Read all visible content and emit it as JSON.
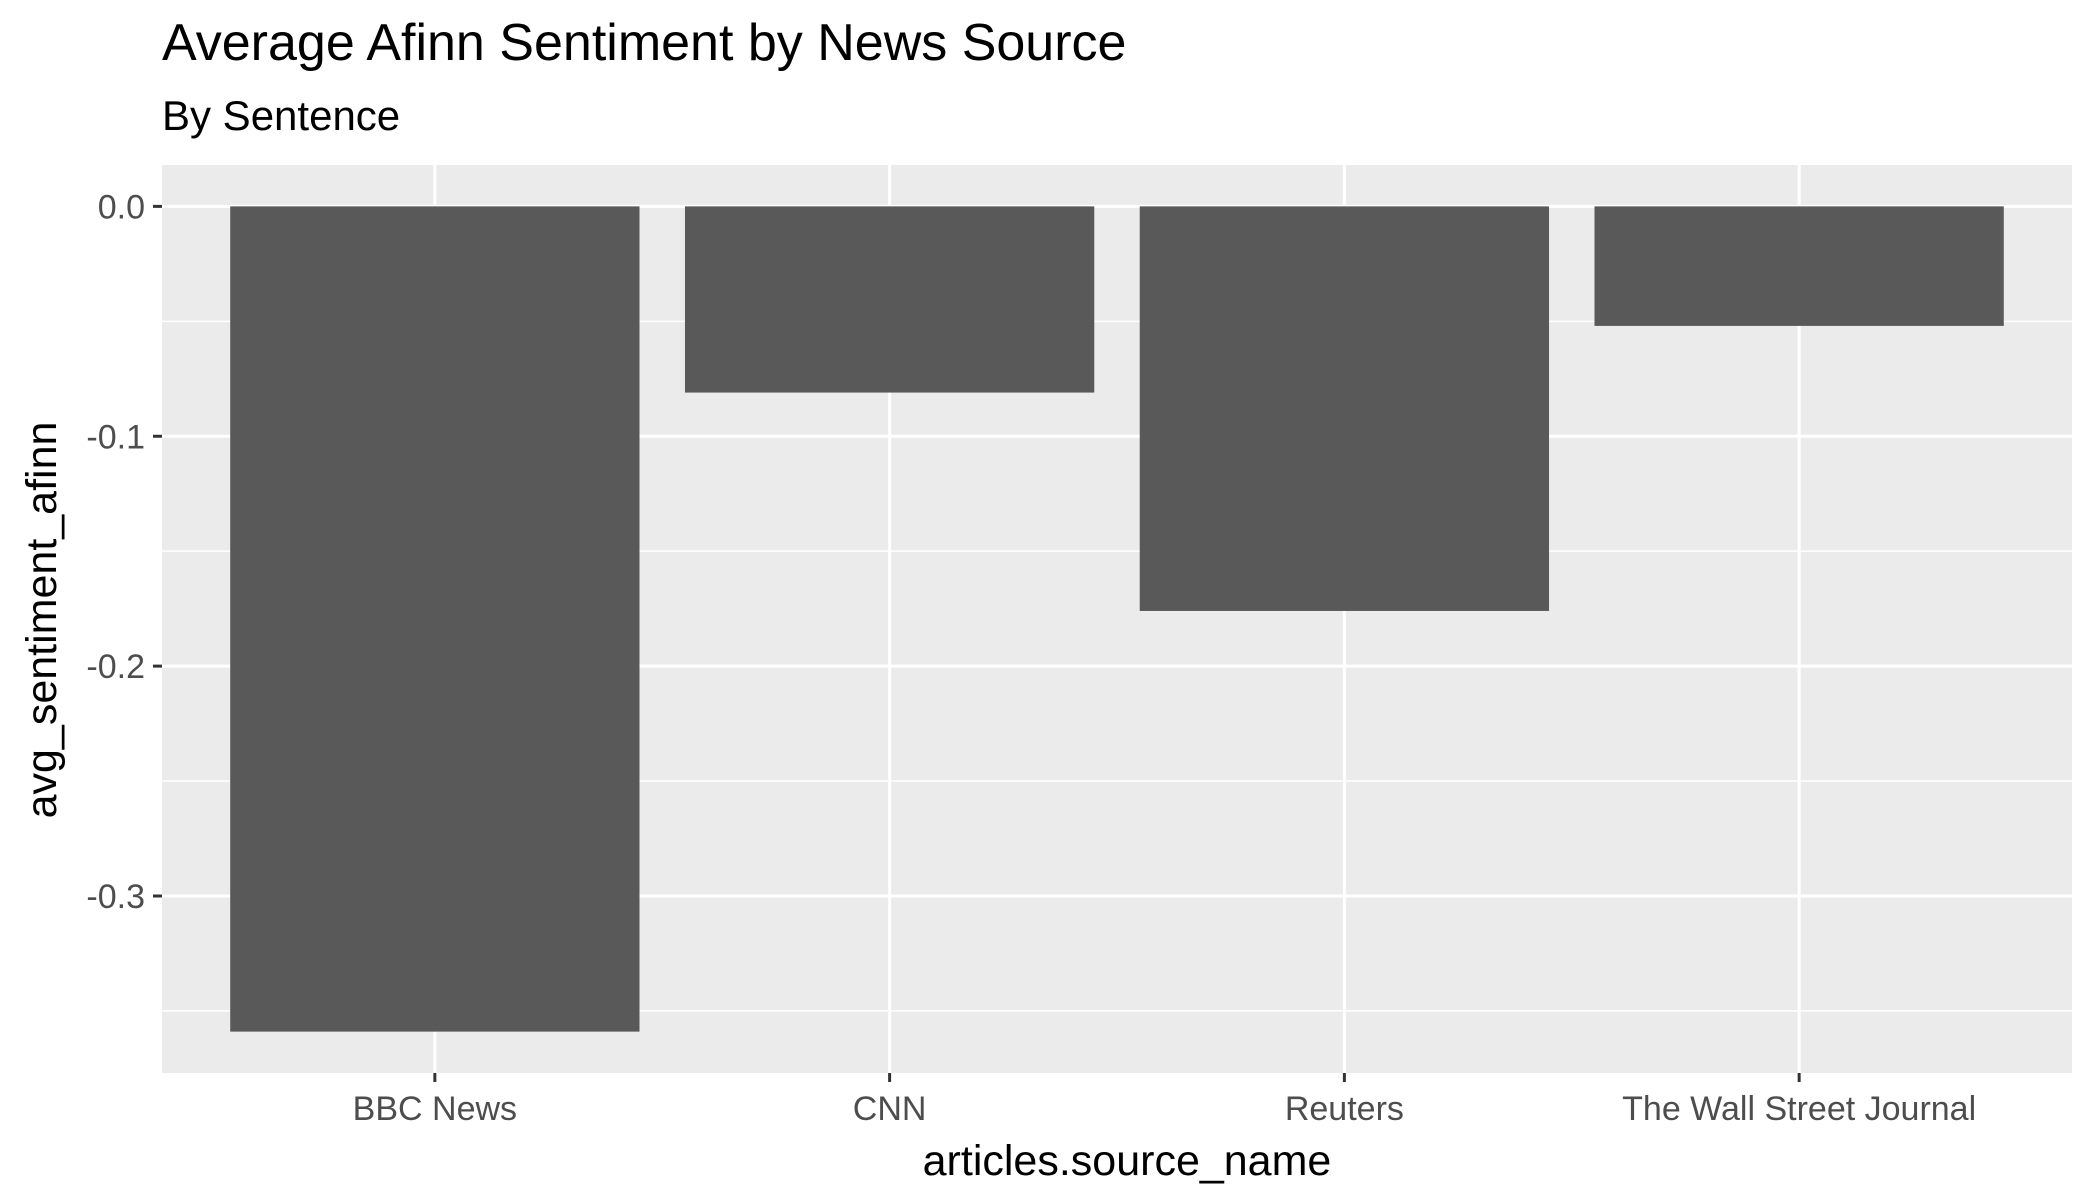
{
  "chart_data": {
    "type": "bar",
    "title": "Average Afinn Sentiment by News Source",
    "subtitle": "By Sentence",
    "xlabel": "articles.source_name",
    "ylabel": "avg_sentiment_afinn",
    "categories": [
      "BBC News",
      "CNN",
      "Reuters",
      "The Wall Street Journal"
    ],
    "values": [
      -0.359,
      -0.081,
      -0.176,
      -0.052
    ],
    "ylim": [
      -0.377,
      0.018
    ],
    "y_major_ticks": [
      0.0,
      -0.1,
      -0.2,
      -0.3
    ],
    "y_tick_labels": [
      "0.0",
      "-0.1",
      "-0.2",
      "-0.3"
    ],
    "y_minor_ticks": [
      -0.05,
      -0.15,
      -0.25,
      -0.35
    ],
    "grid": true,
    "legend": "none",
    "colors": {
      "bar": "#595959",
      "panel_background": "#ebebeb",
      "grid": "#ffffff",
      "tick_label": "#4d4d4d",
      "tick_mark": "#333333",
      "title": "#000000"
    }
  }
}
